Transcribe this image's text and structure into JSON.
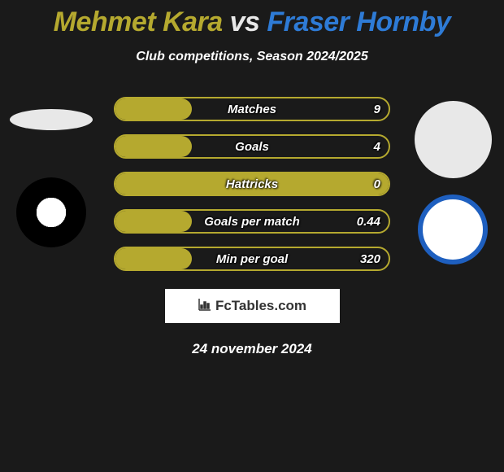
{
  "title": {
    "text_p1": "Mehmet Kara",
    "vs": " vs ",
    "text_p2": "Fraser Hornby",
    "color_p1": "#b5a92f",
    "color_vs": "#e8e8e8",
    "color_p2": "#2e7bd6"
  },
  "subtitle": "Club competitions, Season 2024/2025",
  "stats": {
    "bar_border_color": "#b5a92f",
    "bar_fill_color": "#b5a92f",
    "rows": [
      {
        "label": "Matches",
        "value": "9",
        "fill_pct": 28,
        "fill_side": "left"
      },
      {
        "label": "Goals",
        "value": "4",
        "fill_pct": 28,
        "fill_side": "left"
      },
      {
        "label": "Hattricks",
        "value": "0",
        "fill_pct": 100,
        "fill_side": "left"
      },
      {
        "label": "Goals per match",
        "value": "0.44",
        "fill_pct": 28,
        "fill_side": "left"
      },
      {
        "label": "Min per goal",
        "value": "320",
        "fill_pct": 28,
        "fill_side": "left"
      }
    ]
  },
  "logo_text": "FcTables.com",
  "date": "24 november 2024",
  "players": {
    "left": {
      "club_bg": "#000000",
      "club_inner": "#ffffff"
    },
    "right": {
      "club_border": "#1e5fbf",
      "club_bg": "#ffffff"
    }
  },
  "background_color": "#1a1a1a"
}
